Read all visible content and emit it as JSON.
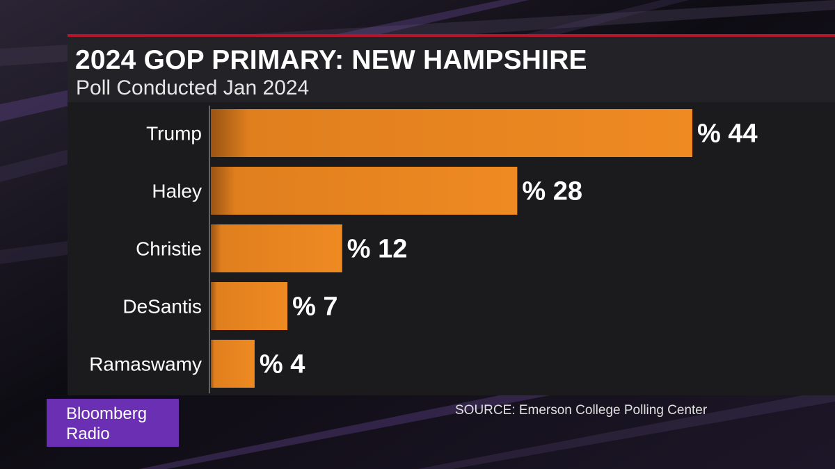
{
  "header": {
    "title": "2024 GOP PRIMARY: NEW HAMPSHIRE",
    "subtitle": "Poll Conducted Jan 2024"
  },
  "footer": {
    "source": "SOURCE: Emerson College Polling Center"
  },
  "logo": {
    "line1": "Bloomberg",
    "line2": "Radio"
  },
  "colors": {
    "bar": "#ef8a22",
    "accent_line": "#b5142b",
    "logo_bg": "#6b2fb4"
  },
  "chart_data": {
    "type": "bar",
    "orientation": "horizontal",
    "title": "2024 GOP PRIMARY: NEW HAMPSHIRE",
    "subtitle": "Poll Conducted Jan 2024",
    "categories": [
      "Trump",
      "Haley",
      "Christie",
      "DeSantis",
      "Ramaswamy"
    ],
    "values": [
      44,
      28,
      12,
      7,
      4
    ],
    "value_labels": [
      "% 44",
      "% 28",
      "% 12",
      "% 7",
      "% 4"
    ],
    "xlim": [
      0,
      44
    ],
    "grid": false,
    "legend": "none"
  }
}
